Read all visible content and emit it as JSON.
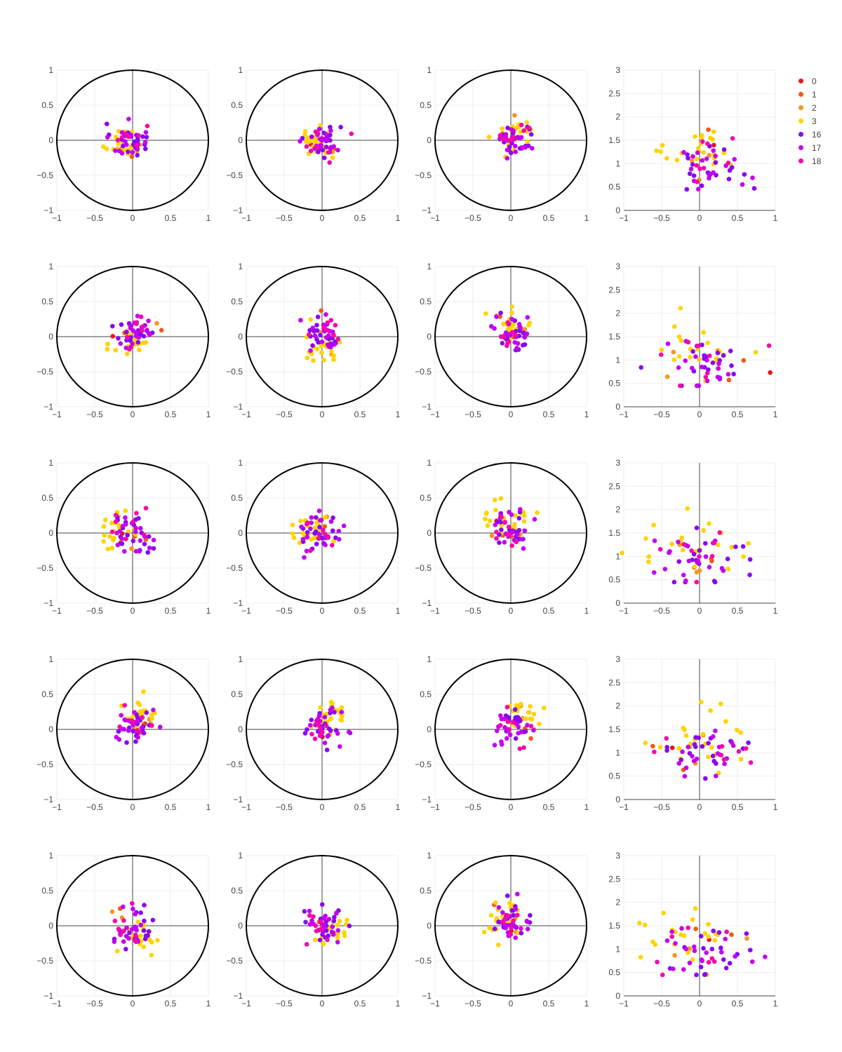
{
  "chart_data": {
    "type": "scatter",
    "grid": true,
    "legend_placement": "top-right",
    "series": [
      {
        "name": "0",
        "color": "#e8141d"
      },
      {
        "name": "1",
        "color": "#f05a0f"
      },
      {
        "name": "2",
        "color": "#f7941d"
      },
      {
        "name": "3",
        "color": "#ffd300"
      },
      {
        "name": "16",
        "color": "#8a07f2"
      },
      {
        "name": "17",
        "color": "#c402f2"
      },
      {
        "name": "18",
        "color": "#f50aa8"
      }
    ],
    "circle_axes": {
      "xlim": [
        -1,
        1
      ],
      "ylim": [
        -1,
        1
      ],
      "xticks": [
        "−1",
        "−0.5",
        "0",
        "0.5",
        "1"
      ],
      "yticks": [
        "−1",
        "−0.5",
        "0",
        "0.5",
        "1"
      ],
      "unit_circle": true
    },
    "magnitude_axes": {
      "xlim": [
        -1,
        1
      ],
      "ylim": [
        0,
        3
      ],
      "xticks": [
        "−1",
        "−0.5",
        "0",
        "0.5",
        "1"
      ],
      "yticks": [
        "0",
        "0.5",
        "1",
        "1.5",
        "2",
        "2.5",
        "3"
      ]
    },
    "rows": [
      {
        "circle_clusters": [
          {
            "cx": -0.05,
            "cy": 0.0,
            "spread": 0.12,
            "offsets": {
              "3": [
                -0.08,
                -0.05
              ]
            }
          },
          {
            "cx": 0.0,
            "cy": 0.0,
            "spread": 0.12,
            "offsets": {
              "3": [
                -0.08,
                -0.03
              ]
            }
          },
          {
            "cx": 0.05,
            "cy": 0.02,
            "spread": 0.13,
            "offsets": {
              "3": [
                0.03,
                0.08
              ]
            }
          }
        ],
        "magnitude": {
          "cx": 0.15,
          "cy": 1.05,
          "sx": 0.25,
          "sy": 0.25
        }
      },
      {
        "circle_clusters": [
          {
            "cx": 0.05,
            "cy": 0.05,
            "spread": 0.13,
            "offsets": {
              "3": [
                -0.05,
                -0.12
              ]
            }
          },
          {
            "cx": 0.05,
            "cy": 0.03,
            "spread": 0.13,
            "offsets": {
              "3": [
                -0.06,
                -0.15
              ]
            }
          },
          {
            "cx": 0.05,
            "cy": 0.05,
            "spread": 0.13,
            "offsets": {
              "3": [
                -0.03,
                0.14
              ]
            }
          }
        ],
        "magnitude": {
          "cx": 0.05,
          "cy": 1.0,
          "sx": 0.3,
          "sy": 0.3
        }
      },
      {
        "circle_clusters": [
          {
            "cx": -0.02,
            "cy": 0.0,
            "spread": 0.14,
            "offsets": {
              "3": [
                -0.2,
                0.05
              ]
            }
          },
          {
            "cx": -0.02,
            "cy": 0.0,
            "spread": 0.14,
            "offsets": {
              "3": [
                -0.15,
                0.05
              ]
            }
          },
          {
            "cx": 0.0,
            "cy": 0.05,
            "spread": 0.14,
            "offsets": {
              "3": [
                -0.05,
                0.2
              ]
            }
          }
        ],
        "magnitude": {
          "cx": 0.0,
          "cy": 1.05,
          "sx": 0.4,
          "sy": 0.3
        }
      },
      {
        "circle_clusters": [
          {
            "cx": 0.05,
            "cy": 0.05,
            "spread": 0.12,
            "offsets": {
              "3": [
                0.05,
                0.15
              ]
            }
          },
          {
            "cx": 0.02,
            "cy": 0.03,
            "spread": 0.12,
            "offsets": {
              "3": [
                0.06,
                0.15
              ]
            }
          },
          {
            "cx": 0.05,
            "cy": 0.05,
            "spread": 0.12,
            "offsets": {
              "3": [
                0.08,
                0.15
              ]
            }
          }
        ],
        "magnitude": {
          "cx": 0.05,
          "cy": 1.1,
          "sx": 0.3,
          "sy": 0.35
        }
      },
      {
        "circle_clusters": [
          {
            "cx": 0.02,
            "cy": -0.02,
            "spread": 0.13,
            "offsets": {
              "3": [
                0.1,
                -0.12
              ]
            }
          },
          {
            "cx": 0.02,
            "cy": 0.0,
            "spread": 0.13,
            "offsets": {
              "3": [
                0.12,
                -0.05
              ]
            }
          },
          {
            "cx": 0.0,
            "cy": 0.02,
            "spread": 0.13,
            "offsets": {
              "3": [
                -0.1,
                0.1
              ]
            }
          }
        ],
        "magnitude": {
          "cx": 0.0,
          "cy": 1.05,
          "sx": 0.35,
          "sy": 0.3
        }
      }
    ]
  }
}
